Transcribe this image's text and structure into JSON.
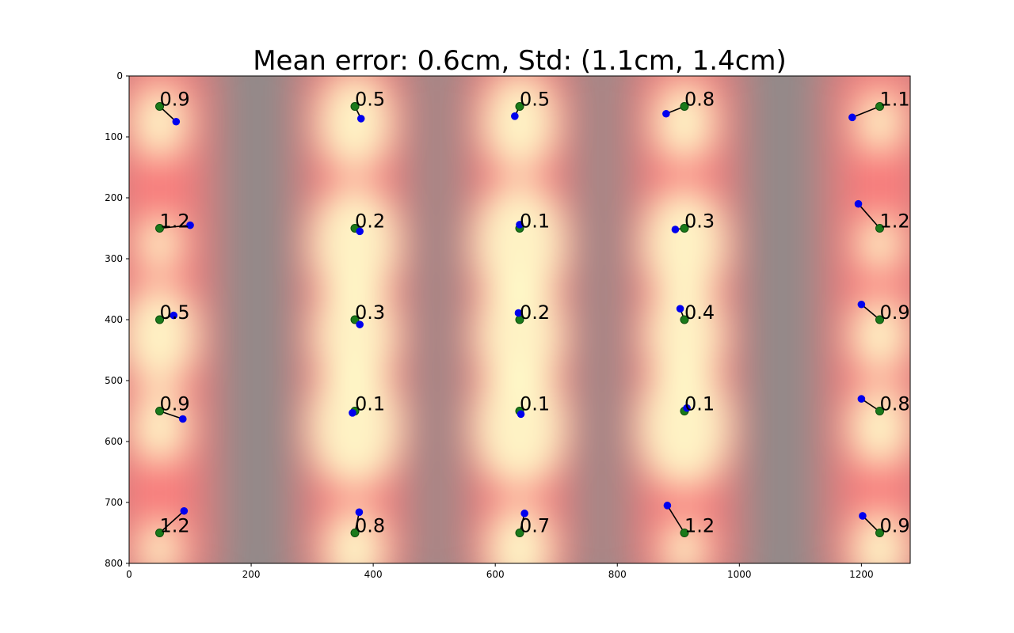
{
  "chart_data": {
    "type": "scatter",
    "title": "Mean error: 0.6cm, Std: (1.1cm, 1.4cm)",
    "xlabel": "",
    "ylabel": "",
    "xlim": [
      0,
      1280
    ],
    "ylim": [
      800,
      0
    ],
    "y_inverted": true,
    "grid": false,
    "legend": "none",
    "x_ticks": [
      0,
      200,
      400,
      600,
      800,
      1000,
      1200
    ],
    "y_ticks": [
      0,
      100,
      200,
      300,
      400,
      500,
      600,
      700,
      800
    ],
    "colors": {
      "target_point": "#1a7a1a",
      "target_edge": "#0b4d0b",
      "predicted_point": "#0000ee",
      "error_line": "#000000",
      "heatmap_low": "#8a8a8a",
      "heatmap_mid": "#ff7a7a",
      "heatmap_high": "#ffffcc"
    },
    "points": [
      {
        "target": [
          50,
          50
        ],
        "predicted": [
          77,
          75
        ],
        "error_label": "0.9"
      },
      {
        "target": [
          370,
          50
        ],
        "predicted": [
          380,
          70
        ],
        "error_label": "0.5"
      },
      {
        "target": [
          640,
          50
        ],
        "predicted": [
          632,
          66
        ],
        "error_label": "0.5"
      },
      {
        "target": [
          910,
          50
        ],
        "predicted": [
          880,
          62
        ],
        "error_label": "0.8"
      },
      {
        "target": [
          1230,
          50
        ],
        "predicted": [
          1185,
          68
        ],
        "error_label": "1.1"
      },
      {
        "target": [
          50,
          250
        ],
        "predicted": [
          100,
          245
        ],
        "error_label": "1.2"
      },
      {
        "target": [
          370,
          250
        ],
        "predicted": [
          378,
          255
        ],
        "error_label": "0.2"
      },
      {
        "target": [
          640,
          250
        ],
        "predicted": [
          640,
          244
        ],
        "error_label": "0.1"
      },
      {
        "target": [
          910,
          250
        ],
        "predicted": [
          895,
          252
        ],
        "error_label": "0.3"
      },
      {
        "target": [
          1230,
          250
        ],
        "predicted": [
          1195,
          210
        ],
        "error_label": "1.2"
      },
      {
        "target": [
          50,
          400
        ],
        "predicted": [
          73,
          393
        ],
        "error_label": "0.5"
      },
      {
        "target": [
          370,
          400
        ],
        "predicted": [
          378,
          408
        ],
        "error_label": "0.3"
      },
      {
        "target": [
          640,
          400
        ],
        "predicted": [
          638,
          389
        ],
        "error_label": "0.2"
      },
      {
        "target": [
          910,
          400
        ],
        "predicted": [
          903,
          382
        ],
        "error_label": "0.4"
      },
      {
        "target": [
          1230,
          400
        ],
        "predicted": [
          1200,
          375
        ],
        "error_label": "0.9"
      },
      {
        "target": [
          50,
          550
        ],
        "predicted": [
          88,
          563
        ],
        "error_label": "0.9"
      },
      {
        "target": [
          370,
          550
        ],
        "predicted": [
          366,
          553
        ],
        "error_label": "0.1"
      },
      {
        "target": [
          640,
          550
        ],
        "predicted": [
          642,
          555
        ],
        "error_label": "0.1"
      },
      {
        "target": [
          910,
          550
        ],
        "predicted": [
          914,
          545
        ],
        "error_label": "0.1"
      },
      {
        "target": [
          1230,
          550
        ],
        "predicted": [
          1200,
          530
        ],
        "error_label": "0.8"
      },
      {
        "target": [
          50,
          750
        ],
        "predicted": [
          90,
          714
        ],
        "error_label": "1.2"
      },
      {
        "target": [
          370,
          750
        ],
        "predicted": [
          377,
          716
        ],
        "error_label": "0.8"
      },
      {
        "target": [
          640,
          750
        ],
        "predicted": [
          648,
          718
        ],
        "error_label": "0.7"
      },
      {
        "target": [
          910,
          750
        ],
        "predicted": [
          882,
          705
        ],
        "error_label": "1.2"
      },
      {
        "target": [
          1230,
          750
        ],
        "predicted": [
          1202,
          722
        ],
        "error_label": "0.9"
      }
    ]
  }
}
